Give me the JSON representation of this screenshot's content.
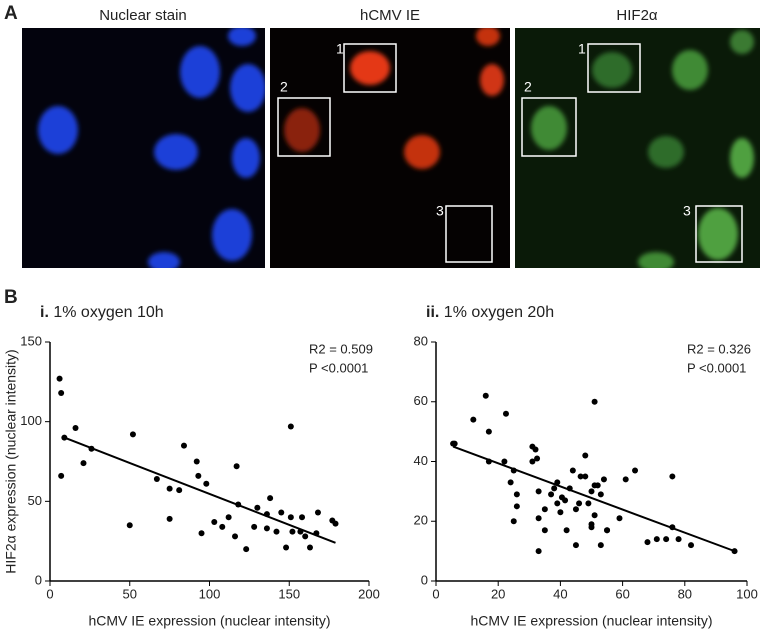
{
  "panels": {
    "a": {
      "label": "A",
      "images": [
        {
          "title": "Nuclear stain",
          "boxes": []
        },
        {
          "title": "hCMV IE",
          "boxes": [
            "1",
            "2",
            "3"
          ]
        },
        {
          "title": "HIF2α",
          "boxes": [
            "1",
            "2",
            "3"
          ]
        }
      ]
    },
    "b": {
      "label": "B"
    }
  },
  "chart_data": [
    {
      "type": "scatter",
      "numeral": "i.",
      "title": "1% oxygen 10h",
      "xlabel": "hCMV IE expression (nuclear intensity)",
      "ylabel": "HIF2α expression (nuclear intensity)",
      "annotations": [
        "R2 = 0.509",
        "P <0.0001"
      ],
      "color": "#000000",
      "xlim": [
        0,
        200
      ],
      "ylim": [
        0,
        150
      ],
      "xticks": [
        0,
        50,
        100,
        150,
        200
      ],
      "yticks": [
        0,
        50,
        100,
        150
      ],
      "x": [
        6,
        7,
        9,
        7,
        16,
        21,
        26,
        50,
        52,
        67,
        75,
        75,
        81,
        84,
        92,
        93,
        98,
        95,
        103,
        108,
        112,
        116,
        118,
        117,
        123,
        128,
        130,
        136,
        136,
        138,
        142,
        145,
        148,
        152,
        151,
        151,
        157,
        160,
        158,
        167,
        163,
        168,
        177,
        179
      ],
      "values": [
        127,
        118,
        90,
        66,
        96,
        74,
        83,
        35,
        92,
        64,
        58,
        39,
        57,
        85,
        75,
        66,
        61,
        30,
        37,
        34,
        40,
        28,
        48,
        72,
        20,
        34,
        46,
        33,
        42,
        52,
        31,
        43,
        21,
        31,
        40,
        97,
        31,
        28,
        40,
        30,
        21,
        43,
        38,
        36
      ],
      "fit": {
        "x": [
          9,
          179
        ],
        "y": [
          90,
          24
        ]
      }
    },
    {
      "type": "scatter",
      "numeral": "ii.",
      "title": "1% oxygen 20h",
      "xlabel": "hCMV IE expression (nuclear intensity)",
      "annotations": [
        "R2 = 0.326",
        "P <0.0001"
      ],
      "color": "#000000",
      "xlim": [
        0,
        100
      ],
      "ylim": [
        0,
        80
      ],
      "xticks": [
        0,
        20,
        40,
        60,
        80,
        100
      ],
      "yticks": [
        0,
        20,
        40,
        60,
        80
      ],
      "x": [
        5.5,
        6,
        12,
        16,
        17,
        17,
        22,
        22.5,
        24,
        25,
        26,
        25,
        26,
        31,
        31,
        32,
        32.5,
        33,
        33,
        33,
        35,
        35,
        37,
        38,
        39,
        39,
        40,
        40.5,
        41.5,
        42,
        43,
        44,
        45,
        45,
        46,
        46.5,
        48,
        48,
        49,
        50,
        50,
        51,
        50,
        51,
        51,
        52,
        53,
        54,
        53,
        55,
        55,
        59,
        61,
        64,
        68,
        71,
        74,
        76,
        76,
        78,
        82,
        96
      ],
      "values": [
        46,
        46,
        54,
        62,
        50,
        40,
        40,
        56,
        33,
        37,
        29,
        20,
        25,
        40,
        45,
        44,
        41,
        30,
        21,
        10,
        24,
        17,
        29,
        31,
        26,
        33,
        23,
        28,
        27,
        17,
        31,
        37,
        24,
        12,
        26,
        35,
        35,
        42,
        26,
        18,
        19,
        22,
        30,
        32,
        60,
        32,
        29,
        34,
        12,
        17,
        17,
        21,
        34,
        37,
        13,
        14,
        14,
        18,
        35,
        14,
        12,
        10
      ],
      "fit": {
        "x": [
          5.5,
          96
        ],
        "y": [
          45,
          10
        ]
      }
    }
  ]
}
